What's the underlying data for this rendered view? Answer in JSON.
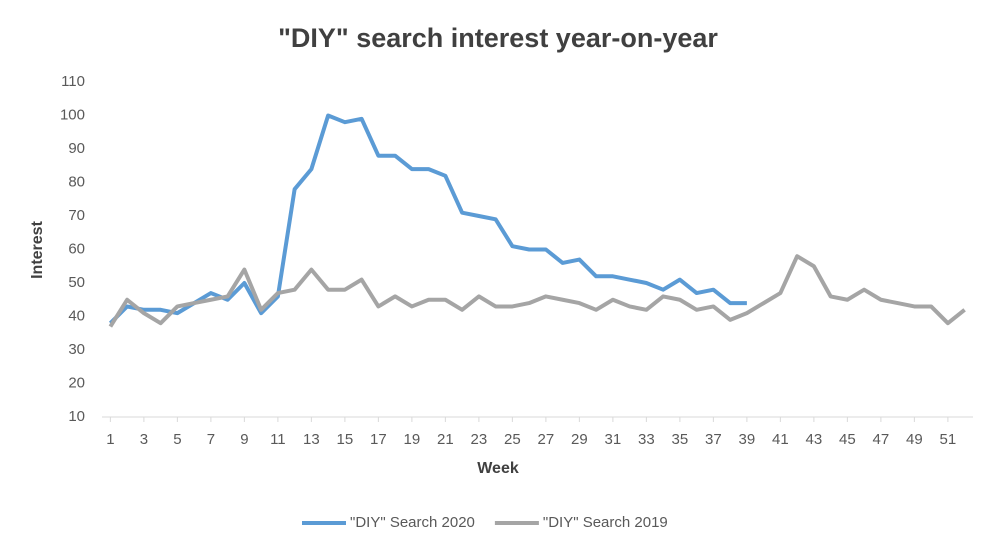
{
  "chart_data": {
    "type": "line",
    "title": "\"DIY\" search interest year-on-year",
    "x_label": "Week",
    "y_label": "Interest",
    "x": [
      1,
      2,
      3,
      4,
      5,
      6,
      7,
      8,
      9,
      10,
      11,
      12,
      13,
      14,
      15,
      16,
      17,
      18,
      19,
      20,
      21,
      22,
      23,
      24,
      25,
      26,
      27,
      28,
      29,
      30,
      31,
      32,
      33,
      34,
      35,
      36,
      37,
      38,
      39,
      40,
      41,
      42,
      43,
      44,
      45,
      46,
      47,
      48,
      49,
      50,
      51,
      52
    ],
    "xlim": [
      0.5,
      52.5
    ],
    "xticks": [
      1,
      3,
      5,
      7,
      9,
      11,
      13,
      15,
      17,
      19,
      21,
      23,
      25,
      27,
      29,
      31,
      33,
      35,
      37,
      39,
      41,
      43,
      45,
      47,
      49,
      51
    ],
    "ylim": [
      10,
      110
    ],
    "yticks": [
      10,
      20,
      30,
      40,
      50,
      60,
      70,
      80,
      90,
      100,
      110
    ],
    "grid": false,
    "legend": "bottom",
    "series": [
      {
        "name": "\"DIY\" Search 2020",
        "color": "#5b9bd5",
        "values": [
          38,
          43,
          42,
          42,
          41,
          44,
          47,
          45,
          50,
          41,
          46,
          78,
          84,
          100,
          98,
          99,
          88,
          88,
          84,
          84,
          82,
          71,
          70,
          69,
          61,
          60,
          60,
          56,
          57,
          52,
          52,
          51,
          50,
          48,
          51,
          47,
          48,
          44,
          44,
          null,
          null,
          null,
          null,
          null,
          null,
          null,
          null,
          null,
          null,
          null,
          null,
          null
        ]
      },
      {
        "name": "\"DIY\" Search 2019",
        "color": "#a5a5a5",
        "values": [
          37,
          45,
          41,
          38,
          43,
          44,
          45,
          46,
          54,
          42,
          47,
          48,
          54,
          48,
          48,
          51,
          43,
          46,
          43,
          45,
          45,
          42,
          46,
          43,
          43,
          44,
          46,
          45,
          44,
          42,
          45,
          43,
          42,
          46,
          45,
          42,
          43,
          39,
          41,
          44,
          47,
          58,
          55,
          46,
          45,
          48,
          45,
          44,
          43,
          43,
          38,
          42
        ]
      }
    ]
  }
}
